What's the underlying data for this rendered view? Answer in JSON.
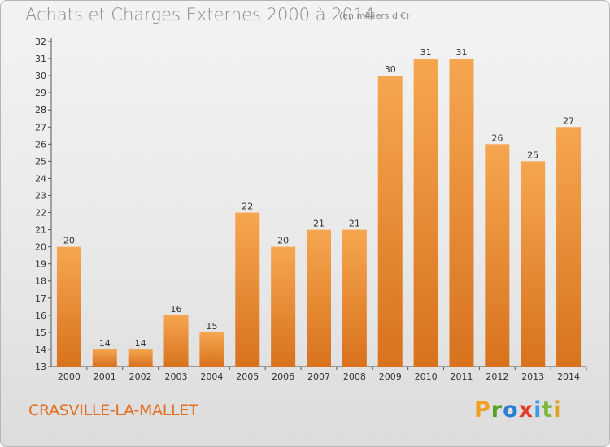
{
  "header": {
    "title": "Achats et Charges Externes 2000 à 2014",
    "unit": "(en milliers d'€)"
  },
  "footer": {
    "commune": "CRASVILLE-LA-MALLET",
    "logo_letters": [
      "P",
      "r",
      "o",
      "x",
      "i",
      "t",
      "i"
    ],
    "logo_colors": [
      "#f0a020",
      "#5aa02c",
      "#2a7fd0",
      "#e03c2c",
      "#3c9de0",
      "#7cb83c",
      "#e0a020"
    ]
  },
  "colors": {
    "bar_top": "#f6a650",
    "bar_bottom": "#d8721d",
    "axis": "#555555",
    "grid": "#dddddd",
    "commune": "#e26e20"
  },
  "chart_data": {
    "type": "bar",
    "categories": [
      "2000",
      "2001",
      "2002",
      "2003",
      "2004",
      "2005",
      "2006",
      "2007",
      "2008",
      "2009",
      "2010",
      "2011",
      "2012",
      "2013",
      "2014"
    ],
    "values": [
      20,
      14,
      14,
      16,
      15,
      22,
      20,
      21,
      21,
      30,
      31,
      31,
      26,
      25,
      27
    ],
    "title": "Achats et Charges Externes 2000 à 2014",
    "ylim": [
      13,
      32
    ],
    "yticks": [
      13,
      14,
      15,
      16,
      17,
      18,
      19,
      20,
      21,
      22,
      23,
      24,
      25,
      26,
      27,
      28,
      29,
      30,
      31,
      32
    ],
    "grid": false,
    "legend": "none"
  }
}
